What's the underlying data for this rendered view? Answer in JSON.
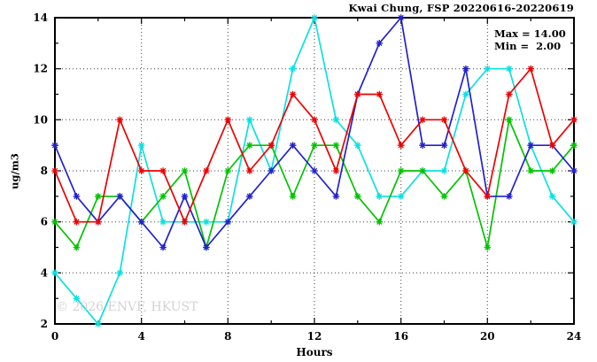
{
  "header": {
    "title": "Kwai Chung, FSP 20220616-20220619"
  },
  "stats": {
    "max_label": "Max = 14.00",
    "min_label": "Min =  2.00"
  },
  "watermark": "© 2026 ENVF, HKUST",
  "chart_data": {
    "type": "line",
    "title": "Kwai Chung, FSP 20220616-20220619",
    "xlabel": "Hours",
    "ylabel": "ug/m3",
    "xlim": [
      0,
      24
    ],
    "ylim": [
      2,
      14
    ],
    "grid": "dotted",
    "legend_position": "none",
    "xticks_major": [
      0,
      4,
      8,
      12,
      16,
      20,
      24
    ],
    "xticks_minor": [
      2,
      6,
      10,
      14,
      18,
      22
    ],
    "yticks_major": [
      2,
      4,
      6,
      8,
      10,
      12,
      14
    ],
    "yticks_minor": [
      3,
      5,
      7,
      9,
      11,
      13
    ],
    "grid_x": [
      4,
      8,
      12,
      16,
      20
    ],
    "grid_y": [
      4,
      6,
      8,
      10,
      12
    ],
    "x": [
      0,
      1,
      2,
      3,
      4,
      5,
      6,
      7,
      8,
      9,
      10,
      11,
      12,
      13,
      14,
      15,
      16,
      17,
      18,
      19,
      20,
      21,
      22,
      23,
      24
    ],
    "series": [
      {
        "name": "day-1-cyan",
        "color": "#0ce0e0",
        "values": [
          4,
          3,
          2,
          4,
          9,
          6,
          6,
          6,
          6,
          10,
          8,
          12,
          14,
          10,
          9,
          7,
          7,
          8,
          8,
          11,
          12,
          12,
          9,
          7,
          6
        ]
      },
      {
        "name": "day-2-green",
        "color": "#00c400",
        "values": [
          6,
          5,
          7,
          7,
          6,
          7,
          8,
          5,
          8,
          9,
          9,
          7,
          9,
          9,
          7,
          6,
          8,
          8,
          7,
          8,
          5,
          10,
          8,
          8,
          9
        ]
      },
      {
        "name": "day-3-blue",
        "color": "#2222cc",
        "values": [
          9,
          7,
          6,
          7,
          6,
          5,
          7,
          5,
          6,
          7,
          8,
          9,
          8,
          7,
          11,
          13,
          14,
          9,
          9,
          12,
          7,
          7,
          9,
          9,
          8
        ]
      },
      {
        "name": "day-4-red",
        "color": "#ee0000",
        "values": [
          8,
          6,
          6,
          10,
          8,
          8,
          6,
          8,
          10,
          8,
          9,
          11,
          10,
          8,
          11,
          11,
          9,
          10,
          10,
          8,
          7,
          11,
          12,
          9,
          10
        ]
      }
    ],
    "stats_box": {
      "max": 14.0,
      "min": 2.0
    }
  }
}
